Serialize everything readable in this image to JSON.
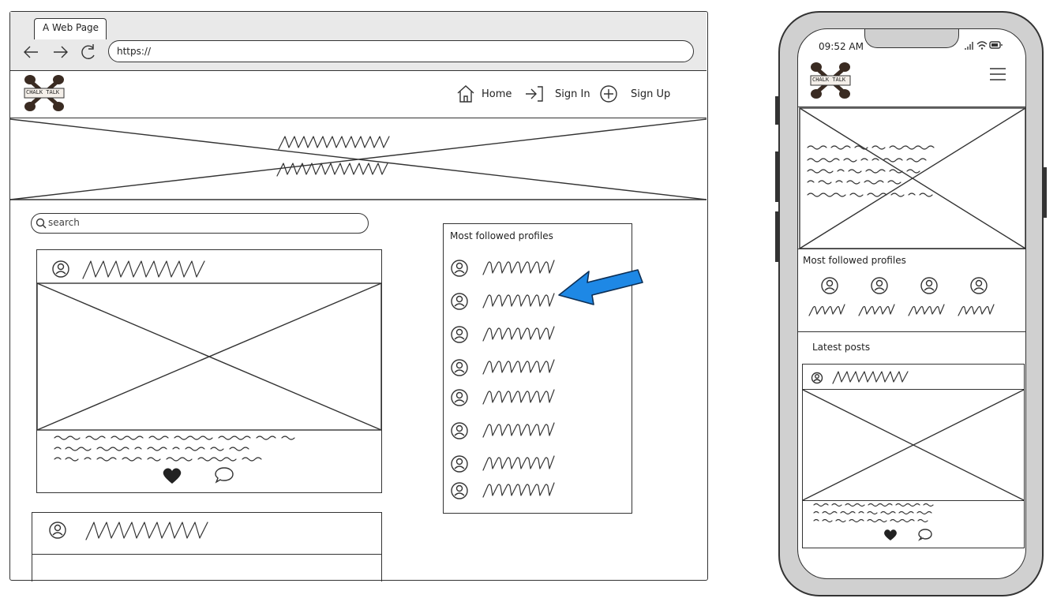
{
  "browser": {
    "tab_title": "A Web Page",
    "url": "https://"
  },
  "site": {
    "logo_text": "CHALK TALK",
    "nav": [
      {
        "label": "Home",
        "icon": "home-icon"
      },
      {
        "label": "Sign In",
        "icon": "sign-in-icon"
      },
      {
        "label": "Sign Up",
        "icon": "plus-circle-icon"
      }
    ]
  },
  "search": {
    "placeholder": "search"
  },
  "sidebar": {
    "title": "Most followed profiles",
    "profile_count": 8
  },
  "post": {
    "actions": [
      "heart-icon",
      "comment-icon"
    ]
  },
  "mobile": {
    "time": "09:52 AM",
    "logo_text": "CHALK TALK",
    "menu_icon": "hamburger-menu-icon",
    "most_followed_title": "Most followed profiles",
    "latest_posts_title": "Latest posts",
    "profile_count": 4
  },
  "annotation": {
    "arrow_color": "#1e88e5"
  }
}
